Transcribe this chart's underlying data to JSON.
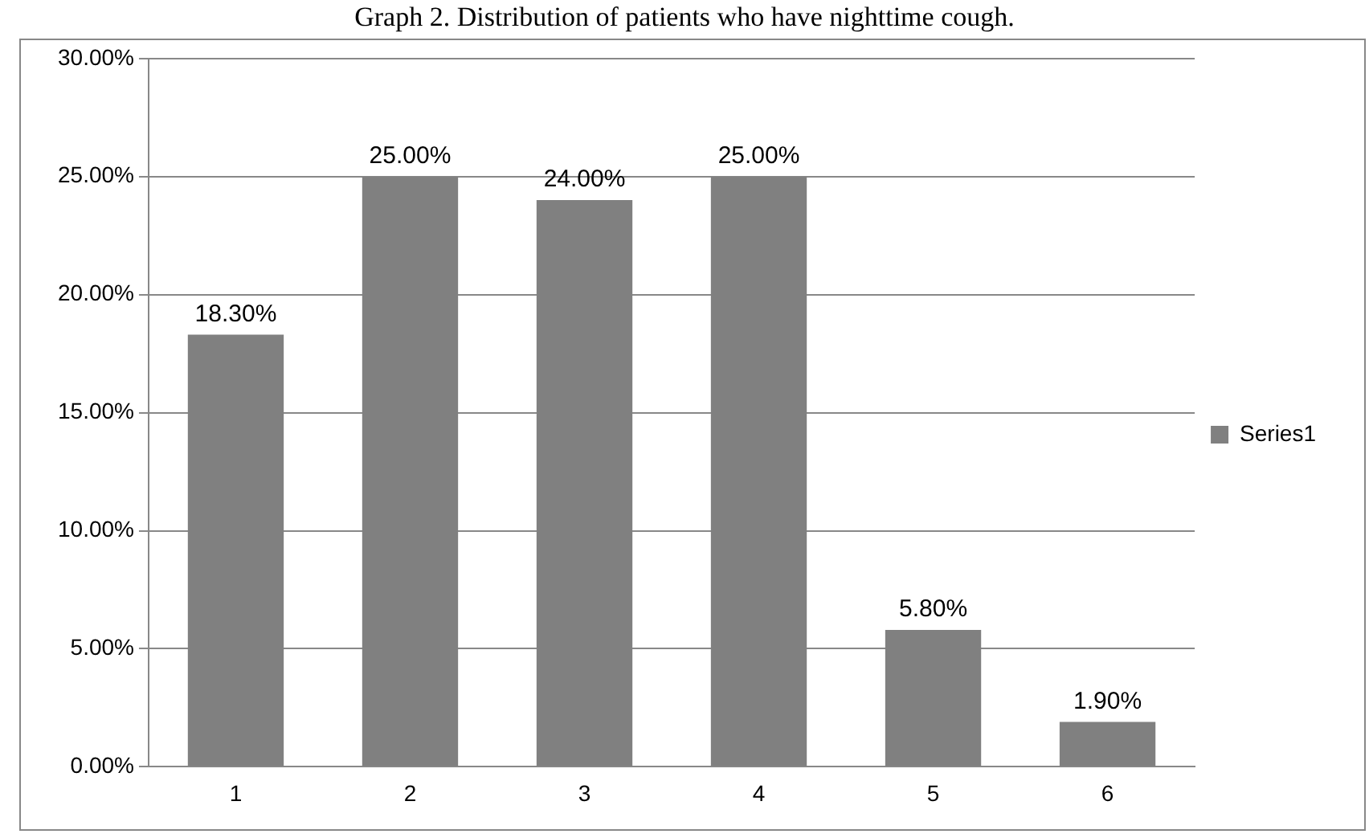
{
  "chart_data": {
    "type": "bar",
    "title": "Graph 2. Distribution of patients who have nighttime cough.",
    "categories": [
      "1",
      "2",
      "3",
      "4",
      "5",
      "6"
    ],
    "series": [
      {
        "name": "Series1",
        "color": "#808080",
        "values": [
          18.3,
          25,
          24,
          25,
          5.8,
          1.9
        ],
        "value_labels": [
          "18.30%",
          "25.00%",
          "24.00%",
          "25.00%",
          "5.80%",
          "1.90%"
        ]
      }
    ],
    "ylim": [
      0,
      30
    ],
    "yticks": [
      {
        "value": 0,
        "label": "0.00%"
      },
      {
        "value": 5,
        "label": "5.00%"
      },
      {
        "value": 10,
        "label": "10.00%"
      },
      {
        "value": 15,
        "label": "15.00%"
      },
      {
        "value": 20,
        "label": "20.00%"
      },
      {
        "value": 25,
        "label": "25.00%"
      },
      {
        "value": 30,
        "label": "30.00%"
      }
    ],
    "grid": "y",
    "legend": "right"
  }
}
